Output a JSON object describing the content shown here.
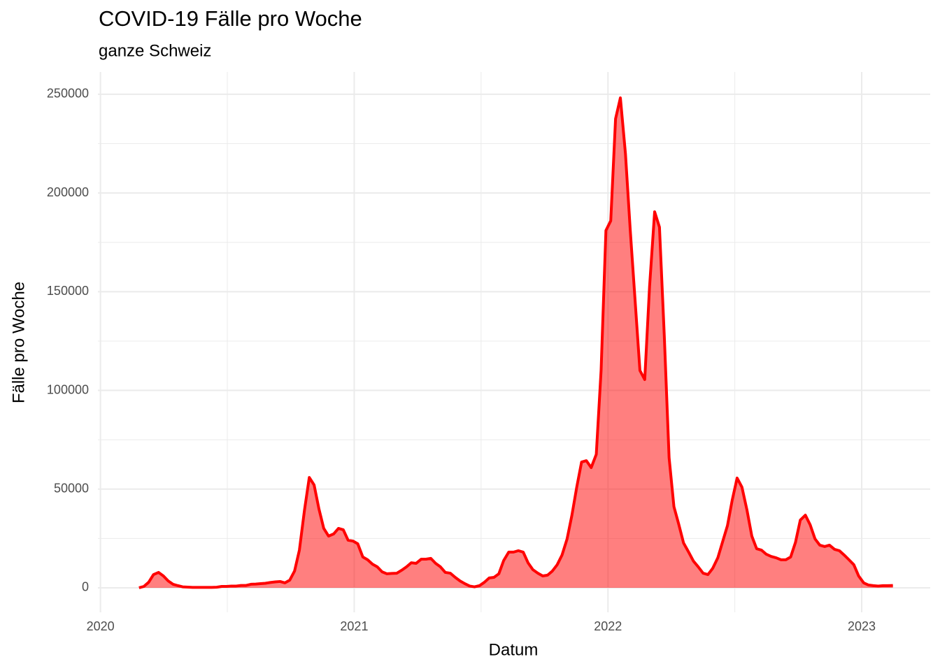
{
  "chart_data": {
    "type": "area",
    "title": "COVID-19 Fälle pro Woche",
    "subtitle": "ganze Schweiz",
    "x_label": "Datum",
    "y_label": "Fälle pro Woche",
    "color": "#ff0000",
    "area_opacity": 0.5,
    "grid": true,
    "xlim": [
      2019.99,
      2023.27
    ],
    "xticks": [
      2020,
      2021,
      2022,
      2023
    ],
    "xminorticks": [
      2020.5,
      2021.5,
      2022.5
    ],
    "ylim": [
      -12400,
      261300
    ],
    "yticks": [
      0,
      50000,
      100000,
      150000,
      200000,
      250000
    ],
    "yminorticks": [
      25000,
      75000,
      125000,
      175000,
      225000
    ],
    "x": [
      2020.152,
      2020.171,
      2020.19,
      2020.209,
      2020.229,
      2020.248,
      2020.267,
      2020.286,
      2020.305,
      2020.324,
      2020.344,
      2020.363,
      2020.382,
      2020.401,
      2020.42,
      2020.439,
      2020.458,
      2020.478,
      2020.497,
      2020.516,
      2020.535,
      2020.554,
      2020.574,
      2020.593,
      2020.612,
      2020.631,
      2020.65,
      2020.669,
      2020.689,
      2020.708,
      2020.727,
      2020.746,
      2020.765,
      2020.784,
      2020.804,
      2020.823,
      2020.842,
      2020.861,
      2020.88,
      2020.899,
      2020.919,
      2020.938,
      2020.957,
      2020.976,
      2020.995,
      2021.014,
      2021.034,
      2021.053,
      2021.072,
      2021.091,
      2021.11,
      2021.129,
      2021.149,
      2021.168,
      2021.187,
      2021.206,
      2021.225,
      2021.244,
      2021.264,
      2021.283,
      2021.302,
      2021.321,
      2021.34,
      2021.359,
      2021.379,
      2021.398,
      2021.417,
      2021.436,
      2021.455,
      2021.474,
      2021.494,
      2021.513,
      2021.532,
      2021.551,
      2021.57,
      2021.589,
      2021.609,
      2021.628,
      2021.647,
      2021.666,
      2021.685,
      2021.704,
      2021.724,
      2021.743,
      2021.762,
      2021.781,
      2021.8,
      2021.819,
      2021.839,
      2021.858,
      2021.877,
      2021.896,
      2021.915,
      2021.934,
      2021.954,
      2021.973,
      2021.992,
      2022.011,
      2022.03,
      2022.049,
      2022.069,
      2022.088,
      2022.107,
      2022.126,
      2022.145,
      2022.164,
      2022.184,
      2022.203,
      2022.222,
      2022.241,
      2022.26,
      2022.279,
      2022.298,
      2022.318,
      2022.337,
      2022.356,
      2022.375,
      2022.394,
      2022.413,
      2022.433,
      2022.452,
      2022.471,
      2022.49,
      2022.509,
      2022.528,
      2022.548,
      2022.567,
      2022.586,
      2022.605,
      2022.624,
      2022.643,
      2022.663,
      2022.682,
      2022.701,
      2022.72,
      2022.739,
      2022.758,
      2022.778,
      2022.797,
      2022.816,
      2022.835,
      2022.854,
      2022.873,
      2022.893,
      2022.912,
      2022.931,
      2022.95,
      2022.969,
      2022.988,
      2023.008,
      2023.027,
      2023.046,
      2023.065,
      2023.084,
      2023.103,
      2023.123
    ],
    "values": [
      0,
      700,
      2800,
      6700,
      7800,
      6000,
      3500,
      1800,
      1100,
      500,
      350,
      200,
      200,
      200,
      200,
      200,
      300,
      700,
      700,
      900,
      900,
      1200,
      1200,
      1800,
      1900,
      2100,
      2300,
      2700,
      3000,
      3200,
      2500,
      3900,
      8500,
      19100,
      39300,
      55900,
      52100,
      40000,
      30100,
      26200,
      27300,
      30100,
      29400,
      24100,
      23700,
      22300,
      15600,
      14200,
      12000,
      10600,
      8100,
      7100,
      7300,
      7400,
      8900,
      10600,
      12700,
      12400,
      14500,
      14500,
      14900,
      12400,
      10600,
      7800,
      7400,
      5300,
      3500,
      2100,
      900,
      500,
      1100,
      2800,
      5000,
      5300,
      7100,
      13800,
      18100,
      18100,
      18800,
      18100,
      12700,
      9200,
      7400,
      6000,
      6400,
      8500,
      11700,
      16600,
      24800,
      36800,
      51000,
      63700,
      64400,
      60900,
      67600,
      110100,
      181000,
      185900,
      237600,
      248200,
      219900,
      181000,
      145500,
      110100,
      105500,
      152600,
      190500,
      182700,
      127800,
      65900,
      41100,
      32200,
      22700,
      18100,
      13500,
      10600,
      7400,
      6700,
      9900,
      15200,
      23400,
      31500,
      44600,
      55600,
      51000,
      39300,
      26200,
      19800,
      19100,
      17000,
      15900,
      15200,
      14200,
      14200,
      15600,
      23000,
      34300,
      36800,
      31900,
      24800,
      21600,
      20900,
      21600,
      19500,
      18800,
      16600,
      14200,
      11700,
      6000,
      2500,
      1400,
      1100,
      900,
      1100,
      1100,
      1200
    ]
  }
}
